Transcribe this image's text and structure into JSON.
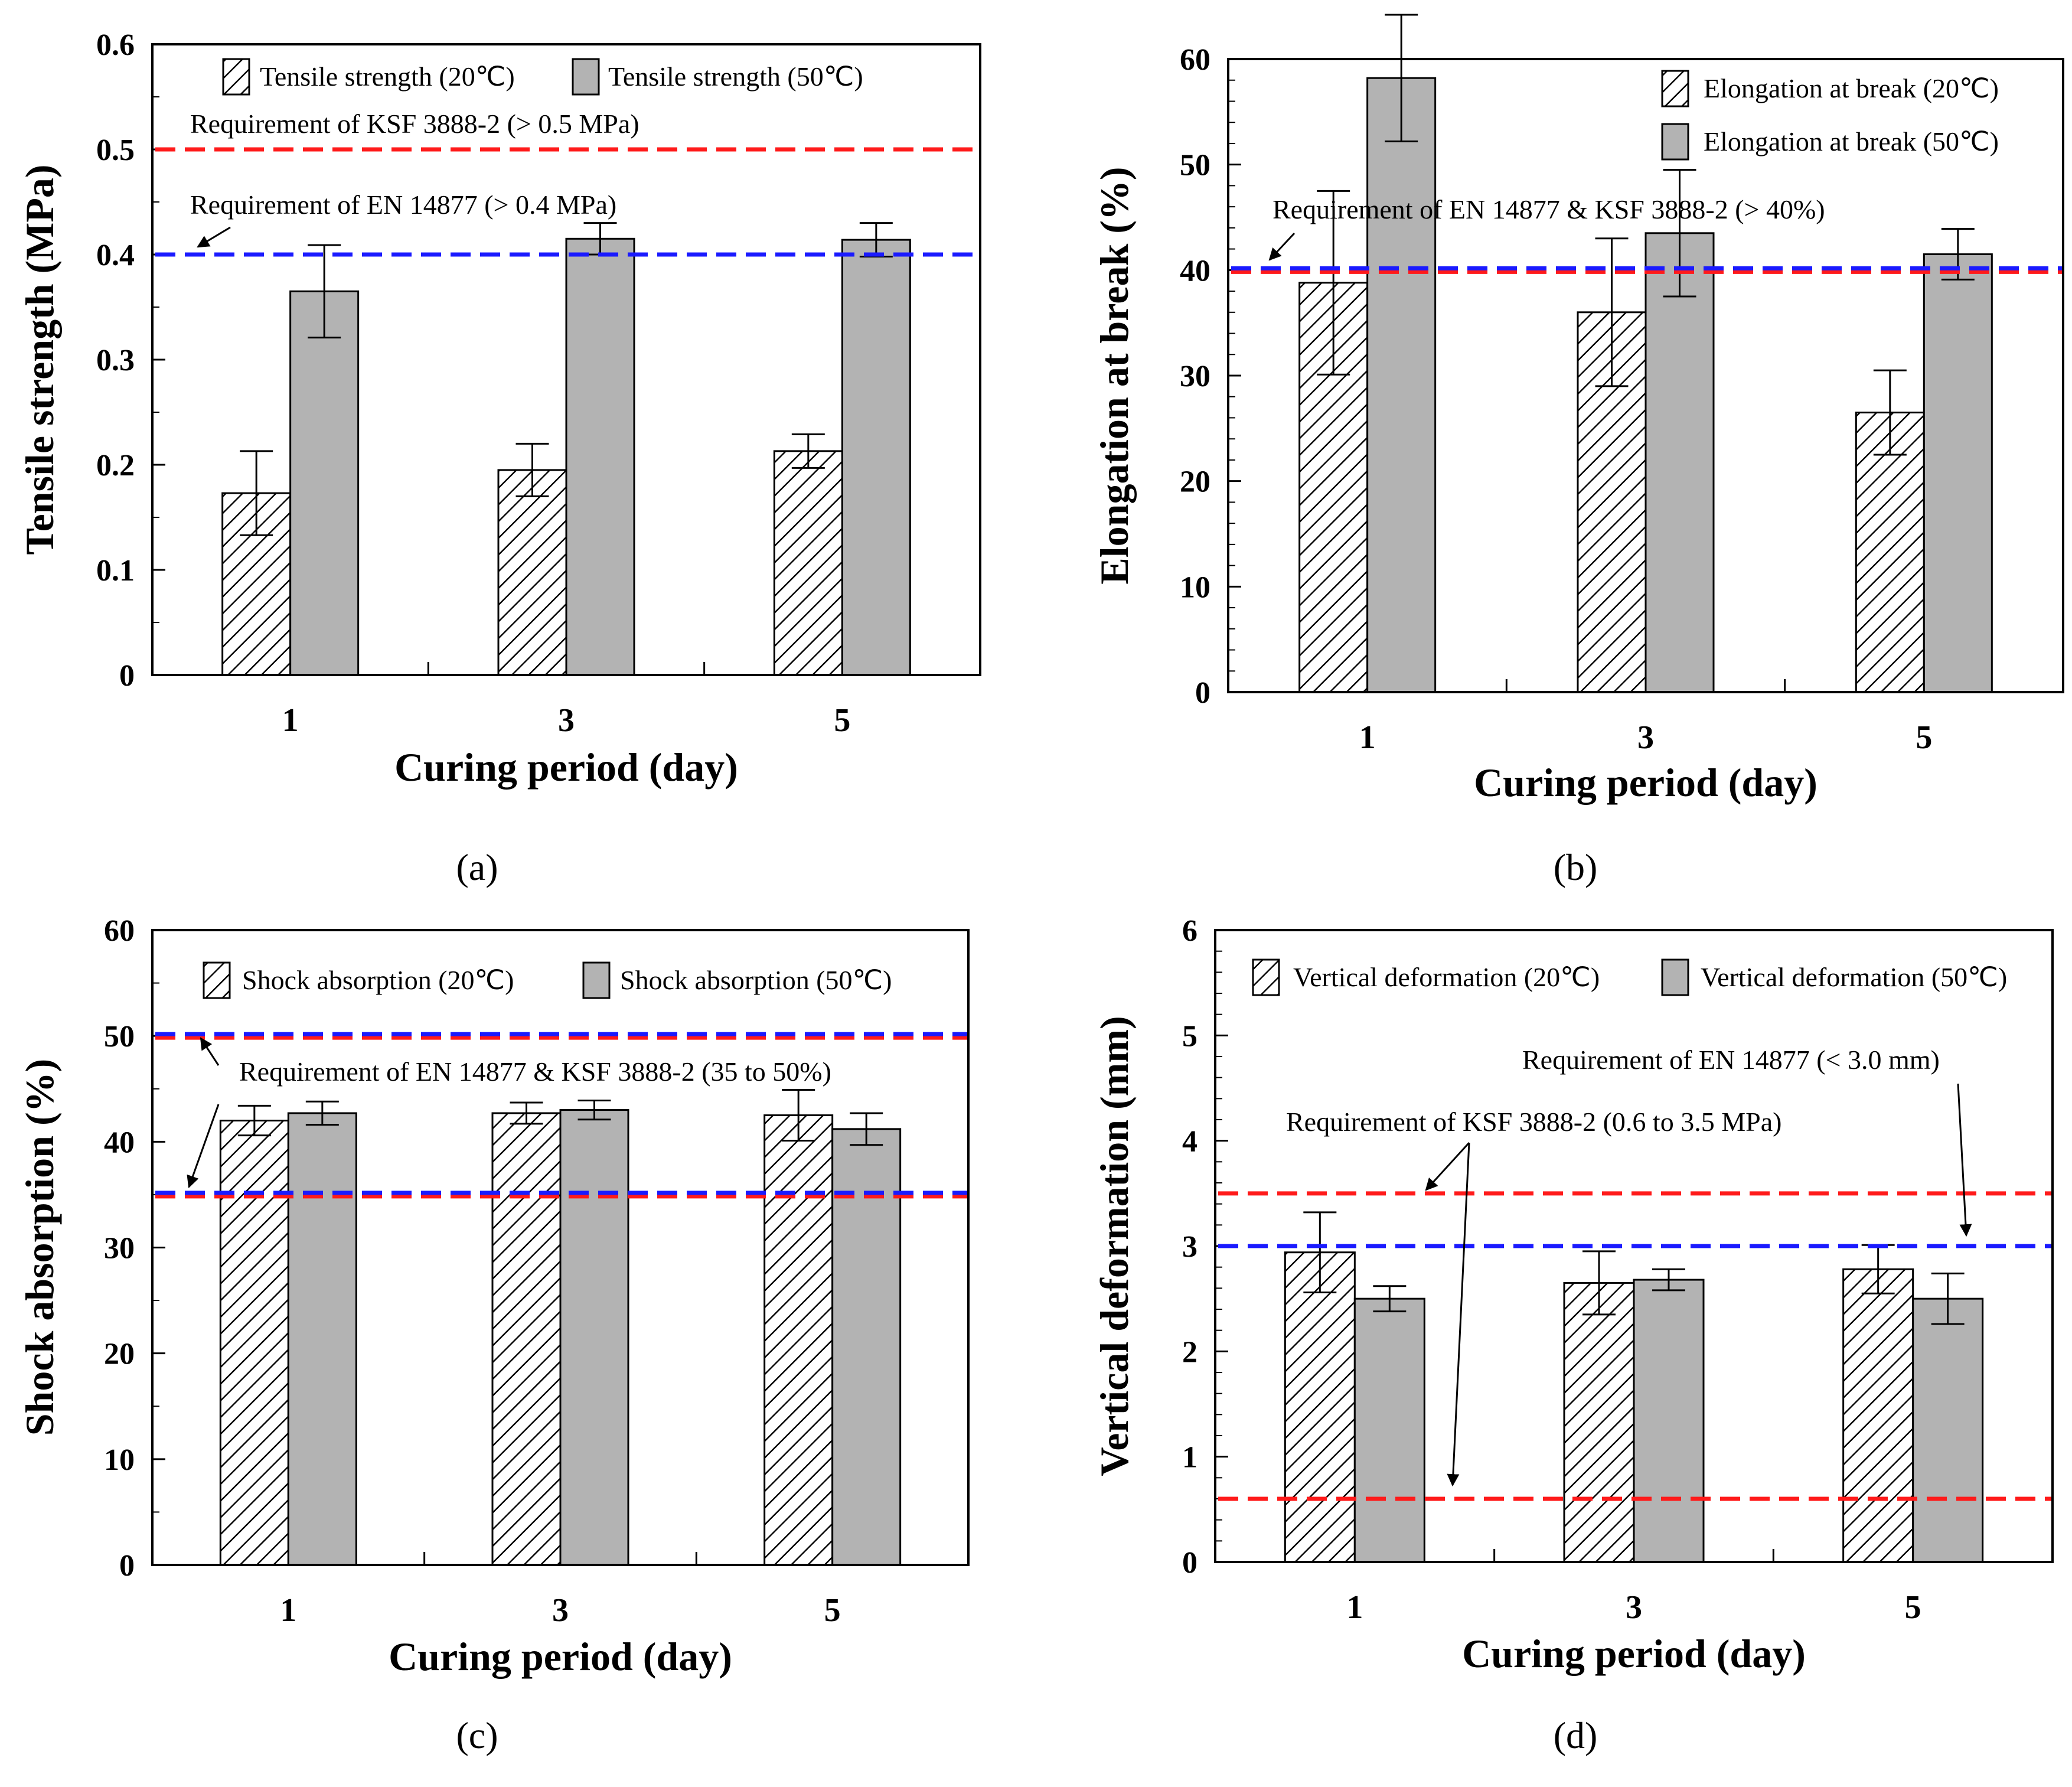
{
  "colors": {
    "red_line": "#ff1a1a",
    "blue_line": "#1a1aff",
    "bar_50": "#b3b3b3",
    "hatch": "#000000"
  },
  "chart_data": [
    {
      "panel": "(a)",
      "type": "bar",
      "title": "",
      "xlabel": "Curing period (day)",
      "ylabel": "Tensile strength (MPa)",
      "categories": [
        "1",
        "3",
        "5"
      ],
      "ylim": [
        0,
        0.6
      ],
      "yticks": [
        "0",
        "0.1",
        "0.2",
        "0.3",
        "0.4",
        "0.5",
        "0.6"
      ],
      "yminor": 0.05,
      "series": [
        {
          "name": "Tensile strength (20℃)",
          "style": "hatch",
          "values": [
            0.173,
            0.195,
            0.213
          ],
          "errors": [
            0.04,
            0.025,
            0.016
          ]
        },
        {
          "name": "Tensile strength (50℃)",
          "style": "gray",
          "values": [
            0.365,
            0.415,
            0.414
          ],
          "errors": [
            0.044,
            0.015,
            0.016
          ]
        }
      ],
      "reference_lines": [
        {
          "y": 0.5,
          "color": "red"
        },
        {
          "y": 0.4,
          "color": "blue"
        }
      ],
      "annotations": [
        {
          "text": "Requirement of KSF 3888-2 (> 0.5 MPa)"
        },
        {
          "text": "Requirement of EN 14877 (> 0.4 MPa)"
        }
      ]
    },
    {
      "panel": "(b)",
      "type": "bar",
      "title": "",
      "xlabel": "Curing period (day)",
      "ylabel": "Elongation at break (%)",
      "categories": [
        "1",
        "3",
        "5"
      ],
      "ylim": [
        0,
        60
      ],
      "yticks": [
        "0",
        "10",
        "20",
        "30",
        "40",
        "50",
        "60"
      ],
      "yminor": 2,
      "series": [
        {
          "name": "Elongation at break (20℃)",
          "style": "hatch",
          "values": [
            38.8,
            36.0,
            26.5
          ],
          "errors": [
            8.7,
            7.0,
            4.0
          ]
        },
        {
          "name": "Elongation at break (50℃)",
          "style": "gray",
          "values": [
            58.2,
            43.5,
            41.5
          ],
          "errors": [
            6.0,
            6.0,
            2.4
          ]
        }
      ],
      "reference_lines": [
        {
          "y": 40,
          "color": "red"
        },
        {
          "y": 40,
          "color": "blue"
        }
      ],
      "annotations": [
        {
          "text": "Requirement of EN 14877 & KSF 3888-2 (> 40%)"
        }
      ]
    },
    {
      "panel": "(c)",
      "type": "bar",
      "title": "",
      "xlabel": "Curing period (day)",
      "ylabel": "Shock absorption (%)",
      "categories": [
        "1",
        "3",
        "5"
      ],
      "ylim": [
        0,
        60
      ],
      "yticks": [
        "0",
        "10",
        "20",
        "30",
        "40",
        "50",
        "60"
      ],
      "yminor": 5,
      "series": [
        {
          "name": "Shock absorption (20℃)",
          "style": "hatch",
          "values": [
            42.0,
            42.7,
            42.5
          ],
          "errors": [
            1.4,
            1.0,
            2.4
          ]
        },
        {
          "name": "Shock absorption (50℃)",
          "style": "gray",
          "values": [
            42.7,
            43.0,
            41.2
          ],
          "errors": [
            1.1,
            0.9,
            1.5
          ]
        }
      ],
      "reference_lines": [
        {
          "y": 50,
          "color": "red"
        },
        {
          "y": 50,
          "color": "blue"
        },
        {
          "y": 35,
          "color": "red"
        },
        {
          "y": 35,
          "color": "blue"
        }
      ],
      "annotations": [
        {
          "text": "Requirement of EN 14877  & KSF 3888-2 (35 to 50%)"
        }
      ]
    },
    {
      "panel": "(d)",
      "type": "bar",
      "title": "",
      "xlabel": "Curing period (day)",
      "ylabel": "Vertical deformation (mm)",
      "categories": [
        "1",
        "3",
        "5"
      ],
      "ylim": [
        0,
        6
      ],
      "yticks": [
        "0",
        "1",
        "2",
        "3",
        "4",
        "5",
        "6"
      ],
      "yminor": 0.2,
      "series": [
        {
          "name": "Vertical deformation (20℃)",
          "style": "hatch",
          "values": [
            2.94,
            2.65,
            2.78
          ],
          "errors": [
            0.38,
            0.3,
            0.23
          ]
        },
        {
          "name": "Vertical deformation (50℃)",
          "style": "gray",
          "values": [
            2.5,
            2.68,
            2.5
          ],
          "errors": [
            0.12,
            0.1,
            0.24
          ]
        }
      ],
      "reference_lines": [
        {
          "y": 3.5,
          "color": "red"
        },
        {
          "y": 0.6,
          "color": "red"
        },
        {
          "y": 3.0,
          "color": "blue"
        }
      ],
      "annotations": [
        {
          "text": "Requirement of EN 14877 (< 3.0 mm)"
        },
        {
          "text": "Requirement of KSF 3888-2 (0.6 to 3.5 MPa)"
        }
      ]
    }
  ]
}
